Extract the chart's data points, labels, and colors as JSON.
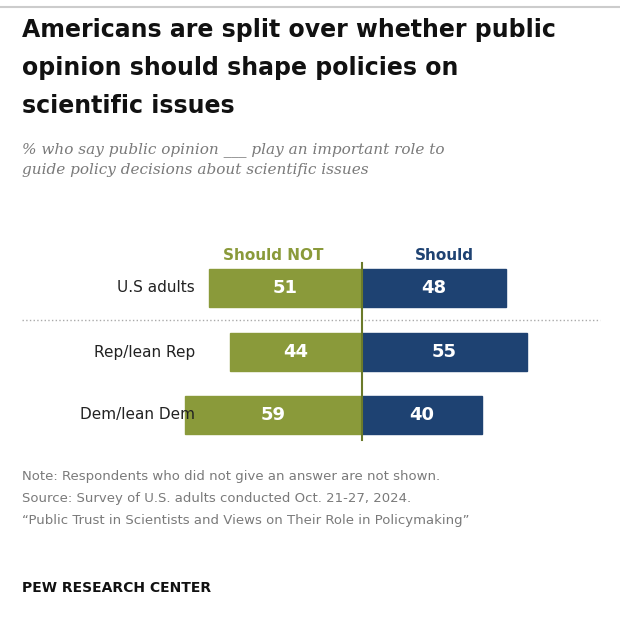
{
  "title_line1": "Americans are split over whether public",
  "title_line2": "opinion should shape policies on",
  "title_line3": "scientific issues",
  "subtitle_line1": "% who say public opinion ___ play an important role to",
  "subtitle_line2": "guide policy decisions about scientific issues",
  "categories": [
    "U.S adults",
    "Rep/lean Rep",
    "Dem/lean Dem"
  ],
  "should_not": [
    51,
    44,
    59
  ],
  "should": [
    48,
    55,
    40
  ],
  "color_should_not": "#8a9a3a",
  "color_should": "#1e4272",
  "note_lines": [
    "Note: Respondents who did not give an answer are not shown.",
    "Source: Survey of U.S. adults conducted Oct. 21-27, 2024.",
    "“Public Trust in Scientists and Views on Their Role in Policymaking”"
  ],
  "footer": "PEW RESEARCH CENTER",
  "bg_color": "#ffffff",
  "label_should_not": "Should NOT",
  "label_should": "Should",
  "title_color": "#111111",
  "subtitle_color": "#7a7a7a",
  "note_color": "#7a7a7a",
  "cat_label_color": "#222222"
}
